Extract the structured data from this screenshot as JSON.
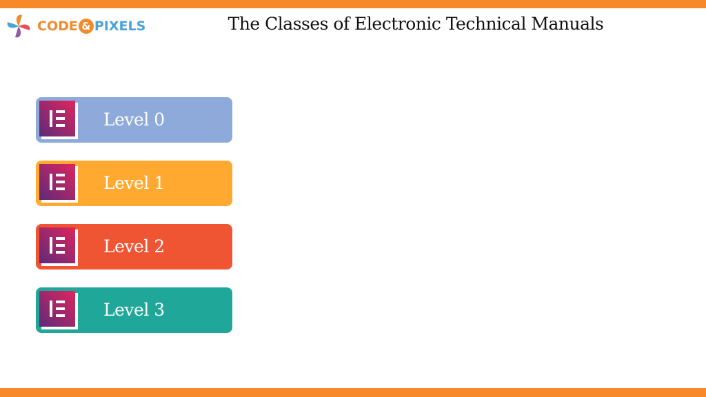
{
  "header": {
    "logo": {
      "left": "CODE",
      "amp": "&",
      "right": "PIXELS"
    },
    "title": "The Classes of Electronic Technical Manuals"
  },
  "levels": [
    {
      "label": "Level 0"
    },
    {
      "label": "Level 1"
    },
    {
      "label": "Level 2"
    },
    {
      "label": "Level 3"
    }
  ]
}
